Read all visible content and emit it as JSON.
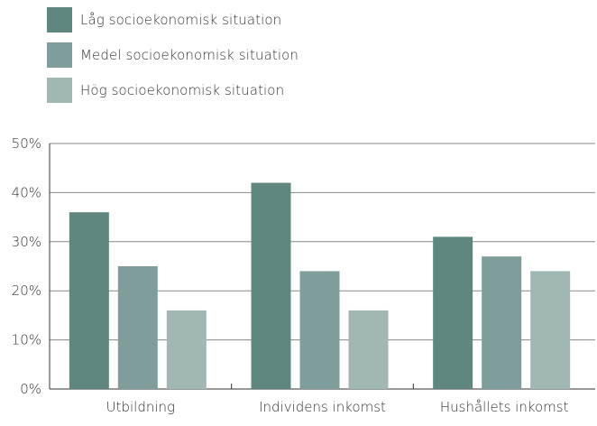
{
  "chart_data": {
    "type": "bar",
    "categories": [
      "Utbildning",
      "Individens inkomst",
      "Hushållets inkomst"
    ],
    "series": [
      {
        "name": "Låg socioekonomisk situation",
        "color": "#5f877f",
        "values": [
          36,
          42,
          31
        ]
      },
      {
        "name": "Medel socioekonomisk situation",
        "color": "#7f9e9b",
        "values": [
          25,
          24,
          27
        ]
      },
      {
        "name": "Hög socioekonomisk situation",
        "color": "#a0b7b3",
        "values": [
          16,
          16,
          24
        ]
      }
    ],
    "y_ticks": [
      "0%",
      "10%",
      "20%",
      "30%",
      "40%",
      "50%"
    ],
    "ylim": [
      0,
      50
    ],
    "grid": true,
    "legend_position": "top-left"
  }
}
